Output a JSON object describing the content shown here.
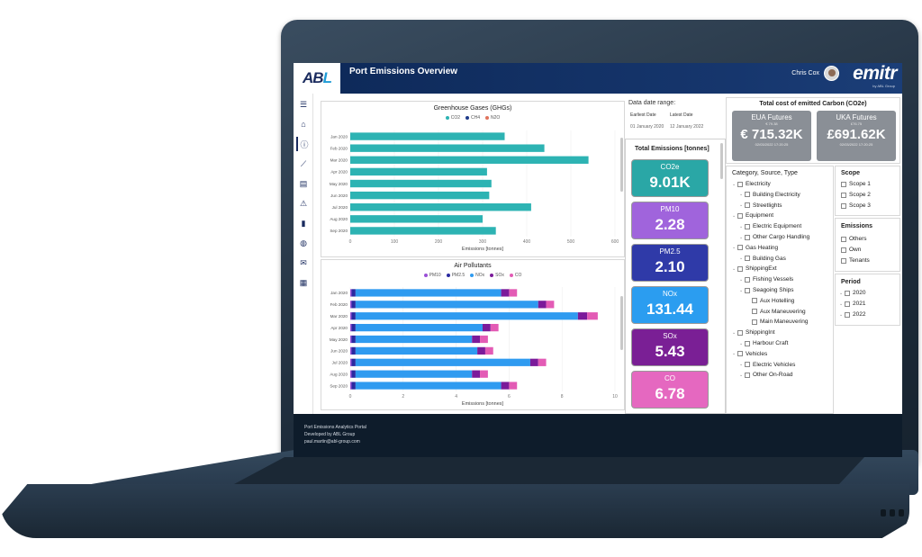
{
  "header": {
    "logo_main": "AB",
    "logo_accent": "L",
    "title": "Port Emissions Overview",
    "user": "Chris Cox",
    "brand": "emitr",
    "brand_sub": "by ABL Group"
  },
  "nav": [
    "menu-icon",
    "home-icon",
    "info-icon",
    "line-chart-icon",
    "document-icon",
    "warning-icon",
    "bar-chart-icon",
    "globe-icon",
    "mail-icon",
    "grid-icon"
  ],
  "ghg": {
    "title": "Greenhouse Gases (GHGs)",
    "legend": [
      "CO2",
      "CH4",
      "N2O"
    ],
    "legend_colors": [
      "#2db3b3",
      "#1f3a8a",
      "#e0735c"
    ],
    "xlabel": "Emissions [tonnes]",
    "ticks": [
      "0",
      "100",
      "200",
      "300",
      "400",
      "500",
      "600"
    ]
  },
  "air": {
    "title": "Air Pollutants",
    "legend": [
      "PM10",
      "PM2.5",
      "NOx",
      "SOx",
      "CO"
    ],
    "legend_colors": [
      "#9a4fd6",
      "#2a2aa0",
      "#2f9bf0",
      "#7b1a9a",
      "#e35bb5"
    ],
    "xlabel": "Emissions [tonnes]",
    "ticks": [
      "0",
      "2",
      "4",
      "6",
      "8",
      "10"
    ]
  },
  "chart_data": [
    {
      "type": "bar",
      "title": "Greenhouse Gases (GHGs)",
      "categories": [
        "Jan 2020",
        "Feb 2020",
        "Mar 2020",
        "Apr 2020",
        "May 2020",
        "Jun 2020",
        "Jul 2020",
        "Aug 2020",
        "Sep 2020"
      ],
      "series": [
        {
          "name": "CO2",
          "values": [
            350,
            440,
            540,
            310,
            320,
            315,
            410,
            300,
            330
          ]
        }
      ],
      "xlabel": "Emissions [tonnes]",
      "xlim": [
        0,
        600
      ]
    },
    {
      "type": "bar",
      "title": "Air Pollutants",
      "categories": [
        "Jan 2020",
        "Feb 2020",
        "Mar 2020",
        "Apr 2020",
        "May 2020",
        "Jun 2020",
        "Jul 2020",
        "Aug 2020",
        "Sep 2020"
      ],
      "series": [
        {
          "name": "PM10",
          "values": [
            0.05,
            0.05,
            0.05,
            0.05,
            0.05,
            0.05,
            0.05,
            0.05,
            0.05
          ]
        },
        {
          "name": "PM2.5",
          "values": [
            0.15,
            0.15,
            0.15,
            0.15,
            0.15,
            0.15,
            0.15,
            0.15,
            0.15
          ]
        },
        {
          "name": "NOx",
          "values": [
            5.5,
            6.9,
            8.4,
            4.8,
            4.4,
            4.6,
            6.6,
            4.4,
            5.5
          ]
        },
        {
          "name": "SOx",
          "values": [
            0.3,
            0.3,
            0.35,
            0.3,
            0.3,
            0.3,
            0.3,
            0.3,
            0.3
          ]
        },
        {
          "name": "CO",
          "values": [
            0.3,
            0.3,
            0.4,
            0.3,
            0.3,
            0.3,
            0.3,
            0.3,
            0.3
          ]
        }
      ],
      "xlabel": "Emissions [tonnes]",
      "xlim": [
        0,
        10
      ]
    }
  ],
  "dates": {
    "range_label": "Data date range:",
    "earliest_label": "Earliest Date",
    "latest_label": "Latest Date",
    "earliest": "01 January 2020",
    "latest": "12 January 2022"
  },
  "totals": {
    "title": "Total Emissions [tonnes]",
    "cards": [
      {
        "label": "CO2e",
        "value": "9.01K",
        "color": "#2aa7a6"
      },
      {
        "label": "PM10",
        "value": "2.28",
        "color": "#a064dc"
      },
      {
        "label": "PM2.5",
        "value": "2.10",
        "color": "#2f3aa8"
      },
      {
        "label": "NOx",
        "value": "131.44",
        "color": "#2b9df0"
      },
      {
        "label": "SOx",
        "value": "5.43",
        "color": "#7a1f95"
      },
      {
        "label": "CO",
        "value": "6.78",
        "color": "#e568c0"
      }
    ]
  },
  "carbon": {
    "title": "Total cost of emitted Carbon (CO2e)",
    "tiles": [
      {
        "name": "EUA Futures",
        "price": "€ 79.38",
        "value": "€ 715.32K",
        "date": "02/03/2022 17:20:25"
      },
      {
        "name": "UKA Futures",
        "price": "£76.75",
        "value": "£691.62K",
        "date": "02/03/2022 17:20:25"
      }
    ]
  },
  "category": {
    "title": "Category, Source, Type",
    "items": [
      {
        "label": "Electricity",
        "level": 0
      },
      {
        "label": "Building Electricity",
        "level": 1
      },
      {
        "label": "Streetlights",
        "level": 1
      },
      {
        "label": "Equipment",
        "level": 0
      },
      {
        "label": "Electric Equipment",
        "level": 1
      },
      {
        "label": "Other Cargo Handling",
        "level": 1
      },
      {
        "label": "Gas Heating",
        "level": 0
      },
      {
        "label": "Building Gas",
        "level": 1
      },
      {
        "label": "ShippingExt",
        "level": 0
      },
      {
        "label": "Fishing Vessels",
        "level": 1
      },
      {
        "label": "Seagoing Ships",
        "level": 1
      },
      {
        "label": "Aux Hotelling",
        "level": 2
      },
      {
        "label": "Aux Maneuvering",
        "level": 2
      },
      {
        "label": "Main Maneuvering",
        "level": 2
      },
      {
        "label": "ShippingInt",
        "level": 0
      },
      {
        "label": "Harbour Craft",
        "level": 1
      },
      {
        "label": "Vehicles",
        "level": 0
      },
      {
        "label": "Electric Vehicles",
        "level": 1
      },
      {
        "label": "Other On-Road",
        "level": 1
      }
    ]
  },
  "scope": {
    "title": "Scope",
    "items": [
      "Scope 1",
      "Scope 2",
      "Scope 3"
    ]
  },
  "emissions_filter": {
    "title": "Emissions",
    "items": [
      "Others",
      "Own",
      "Tenants"
    ]
  },
  "period": {
    "title": "Period",
    "items": [
      "2020",
      "2021",
      "2022"
    ]
  },
  "footer": {
    "line1": "Port Emissions Analytics Portal",
    "line2": "Developed by ABL Group",
    "line3": "paul.martin@abl-group.com"
  }
}
